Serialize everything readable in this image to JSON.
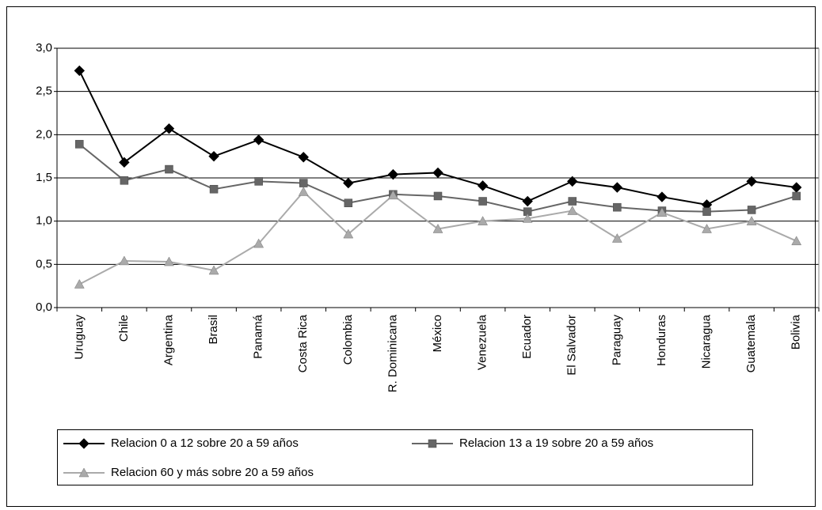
{
  "chart_data": {
    "type": "line",
    "categories": [
      "Uruguay",
      "Chile",
      "Argentina",
      "Brasil",
      "Panamá",
      "Costa Rica",
      "Colombia",
      "R. Dominicana",
      "México",
      "Venezuela",
      "Ecuador",
      "El Salvador",
      "Paraguay",
      "Honduras",
      "Nicaragua",
      "Guatemala",
      "Bolivia"
    ],
    "series": [
      {
        "name": "Relacion 0 a 12 sobre 20 a 59 años",
        "color": "#000000",
        "marker": "diamond",
        "values": [
          2.74,
          1.68,
          2.07,
          1.75,
          1.94,
          1.74,
          1.44,
          1.54,
          1.56,
          1.41,
          1.23,
          1.46,
          1.39,
          1.28,
          1.19,
          1.46,
          1.39
        ]
      },
      {
        "name": "Relacion 13 a 19 sobre 20 a 59 años",
        "color": "#666666",
        "marker": "square",
        "values": [
          1.89,
          1.47,
          1.6,
          1.37,
          1.46,
          1.44,
          1.21,
          1.31,
          1.29,
          1.23,
          1.11,
          1.23,
          1.16,
          1.12,
          1.11,
          1.13,
          1.29
        ]
      },
      {
        "name": "Relacion 60 y más sobre 20 a 59 años",
        "color": "#aaaaaa",
        "marker": "triangle",
        "values": [
          0.27,
          0.54,
          0.53,
          0.43,
          0.74,
          1.34,
          0.85,
          1.3,
          0.91,
          1.0,
          1.03,
          1.12,
          0.8,
          1.1,
          0.91,
          1.0,
          0.77
        ]
      }
    ],
    "ylim": [
      0,
      3
    ],
    "yticks": [
      {
        "value": 0,
        "label": "0,0"
      },
      {
        "value": 0.5,
        "label": "0,5"
      },
      {
        "value": 1,
        "label": "1,0"
      },
      {
        "value": 1.5,
        "label": "1,5"
      },
      {
        "value": 2,
        "label": "2,0"
      },
      {
        "value": 2.5,
        "label": "2,5"
      },
      {
        "value": 3,
        "label": "3,0"
      }
    ],
    "grid": true
  }
}
